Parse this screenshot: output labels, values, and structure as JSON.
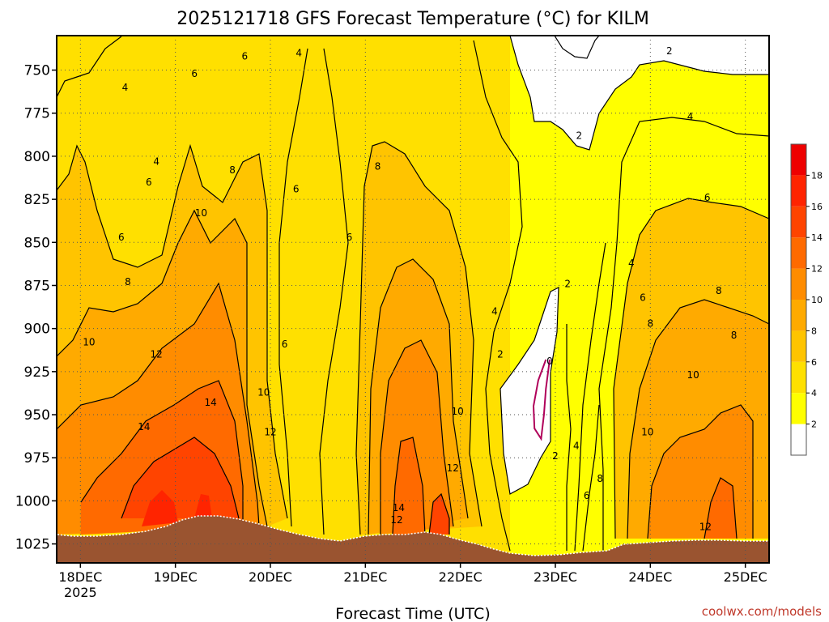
{
  "title": "2025121718 GFS Forecast Temperature (°C) for KILM",
  "credit": "coolwx.com/models",
  "chart_data": {
    "type": "heatmap",
    "title": "2025121718 GFS Forecast Temperature (°C) for KILM",
    "xlabel": "Forecast Time (UTC)",
    "ylabel": "",
    "x_ticks": [
      {
        "label": "18DEC",
        "sub": "2025",
        "day": 0
      },
      {
        "label": "19DEC",
        "sub": "",
        "day": 1
      },
      {
        "label": "20DEC",
        "sub": "",
        "day": 2
      },
      {
        "label": "21DEC",
        "sub": "",
        "day": 3
      },
      {
        "label": "22DEC",
        "sub": "",
        "day": 4
      },
      {
        "label": "23DEC",
        "sub": "",
        "day": 5
      },
      {
        "label": "24DEC",
        "sub": "",
        "day": 6
      },
      {
        "label": "25DEC",
        "sub": "",
        "day": 7
      }
    ],
    "xlim": [
      -0.25,
      7.25
    ],
    "y_ticks": [
      "750",
      "775",
      "800",
      "825",
      "850",
      "875",
      "900",
      "925",
      "950",
      "975",
      "1000",
      "1025"
    ],
    "ylim_hpa": [
      1036,
      730
    ],
    "grid": true,
    "colorbar": {
      "ticks": [
        "2",
        "4",
        "6",
        "8",
        "10",
        "12",
        "14",
        "16",
        "18"
      ],
      "colors": [
        "#ffffff",
        "#ffff00",
        "#ffe000",
        "#ffc400",
        "#ffaa00",
        "#ff8c00",
        "#ff6a00",
        "#ff4400",
        "#ff2400",
        "#ee0000"
      ],
      "levels": [
        2,
        4,
        6,
        8,
        10,
        12,
        14,
        16,
        18
      ]
    },
    "contour_labels": [
      {
        "text": "4",
        "day": 0.47,
        "p": 760
      },
      {
        "text": "6",
        "day": 1.2,
        "p": 752
      },
      {
        "text": "6",
        "day": 1.73,
        "p": 742
      },
      {
        "text": "4",
        "day": 2.3,
        "p": 740
      },
      {
        "text": "2",
        "day": 6.2,
        "p": 739
      },
      {
        "text": "4",
        "day": 6.42,
        "p": 777
      },
      {
        "text": "2",
        "day": 5.25,
        "p": 788
      },
      {
        "text": "4",
        "day": 0.8,
        "p": 803
      },
      {
        "text": "6",
        "day": 0.72,
        "p": 815
      },
      {
        "text": "8",
        "day": 1.6,
        "p": 808
      },
      {
        "text": "8",
        "day": 3.13,
        "p": 806
      },
      {
        "text": "6",
        "day": 2.27,
        "p": 819
      },
      {
        "text": "6",
        "day": 6.6,
        "p": 824
      },
      {
        "text": "10",
        "day": 1.27,
        "p": 833
      },
      {
        "text": "6",
        "day": 0.43,
        "p": 847
      },
      {
        "text": "6",
        "day": 2.83,
        "p": 847
      },
      {
        "text": "4",
        "day": 5.8,
        "p": 862
      },
      {
        "text": "8",
        "day": 0.5,
        "p": 873
      },
      {
        "text": "2",
        "day": 5.13,
        "p": 874
      },
      {
        "text": "6",
        "day": 5.92,
        "p": 882
      },
      {
        "text": "8",
        "day": 6.72,
        "p": 878
      },
      {
        "text": "4",
        "day": 4.36,
        "p": 890
      },
      {
        "text": "8",
        "day": 6.0,
        "p": 897
      },
      {
        "text": "10",
        "day": 0.09,
        "p": 908
      },
      {
        "text": "6",
        "day": 2.15,
        "p": 909
      },
      {
        "text": "8",
        "day": 6.88,
        "p": 904
      },
      {
        "text": "12",
        "day": 0.8,
        "p": 915
      },
      {
        "text": "2",
        "day": 4.42,
        "p": 915
      },
      {
        "text": "0",
        "day": 4.94,
        "p": 919
      },
      {
        "text": "10",
        "day": 6.45,
        "p": 927
      },
      {
        "text": "14",
        "day": 1.37,
        "p": 943
      },
      {
        "text": "10",
        "day": 1.93,
        "p": 937
      },
      {
        "text": "10",
        "day": 3.97,
        "p": 948
      },
      {
        "text": "14",
        "day": 0.67,
        "p": 957
      },
      {
        "text": "12",
        "day": 2.0,
        "p": 960
      },
      {
        "text": "10",
        "day": 5.97,
        "p": 960
      },
      {
        "text": "4",
        "day": 5.22,
        "p": 968
      },
      {
        "text": "2",
        "day": 5.0,
        "p": 974
      },
      {
        "text": "12",
        "day": 3.92,
        "p": 981
      },
      {
        "text": "8",
        "day": 5.47,
        "p": 987
      },
      {
        "text": "6",
        "day": 5.33,
        "p": 997
      },
      {
        "text": "14",
        "day": 3.35,
        "p": 1004
      },
      {
        "text": "12",
        "day": 3.33,
        "p": 1011
      },
      {
        "text": "12",
        "day": 6.58,
        "p": 1015
      }
    ],
    "zero_contour_days": [
      [
        4.9,
        918
      ],
      [
        4.82,
        930
      ],
      [
        4.77,
        945
      ],
      [
        4.78,
        958
      ],
      [
        4.85,
        964
      ],
      [
        4.88,
        950
      ],
      [
        4.9,
        935
      ],
      [
        4.94,
        918
      ]
    ]
  }
}
